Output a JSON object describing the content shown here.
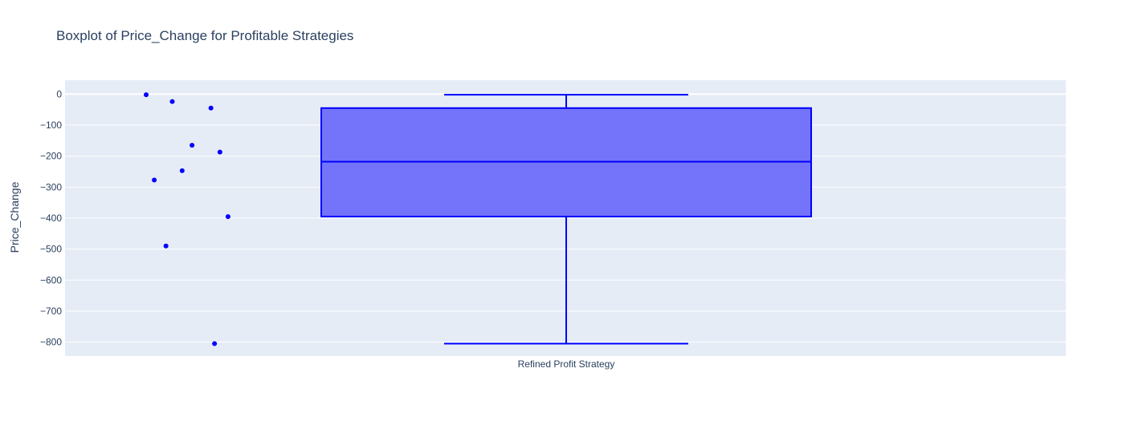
{
  "chart_data": {
    "type": "box",
    "title": "Boxplot of Price_Change for Profitable Strategies",
    "xlabel": "",
    "ylabel": "Price_Change",
    "categories": [
      "Refined Profit Strategy"
    ],
    "ylim": [
      -845,
      45
    ],
    "yticks": [
      0,
      -100,
      -200,
      -300,
      -400,
      -500,
      -600,
      -700,
      -800
    ],
    "ytick_labels": [
      "0",
      "−100",
      "−200",
      "−300",
      "−400",
      "−500",
      "−600",
      "−700",
      "−800"
    ],
    "grid": true,
    "box": {
      "category": "Refined Profit Strategy",
      "lowerfence": -805,
      "q1": -395,
      "median": -218,
      "q3": -45,
      "upperfence": -2
    },
    "points": [
      {
        "y": -2,
        "jitter": 0.0
      },
      {
        "y": -24,
        "jitter": 0.29
      },
      {
        "y": -45,
        "jitter": 0.72
      },
      {
        "y": -165,
        "jitter": 0.51
      },
      {
        "y": -187,
        "jitter": 0.82
      },
      {
        "y": -247,
        "jitter": 0.4
      },
      {
        "y": -277,
        "jitter": 0.09
      },
      {
        "y": -395,
        "jitter": 0.91
      },
      {
        "y": -490,
        "jitter": 0.22
      },
      {
        "y": -805,
        "jitter": 0.76
      }
    ],
    "colors": {
      "box_line": "#0000ff",
      "box_fill": "#7474fa",
      "points": "#0000ff",
      "plot_bg": "#e5ecf6",
      "grid": "#ffffff",
      "text": "#2a3f5f"
    }
  }
}
